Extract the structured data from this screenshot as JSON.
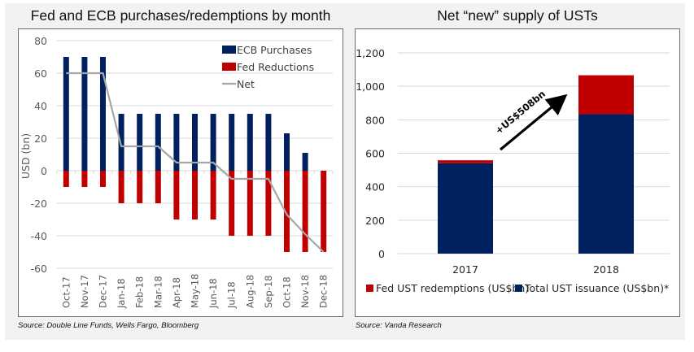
{
  "chart_data": [
    {
      "type": "bar",
      "title": "Fed and ECB purchases/redemptions by month",
      "xlabel": "",
      "ylabel": "USD (bn)",
      "ylim": [
        -60,
        80
      ],
      "yticks": [
        80,
        60,
        40,
        20,
        0,
        -20,
        -40,
        -60
      ],
      "grid": true,
      "legend_position": "top-right",
      "categories": [
        "Oct-17",
        "Nov-17",
        "Dec-17",
        "Jan-18",
        "Feb-18",
        "Mar-18",
        "Apr-18",
        "May-18",
        "Jun-18",
        "Jul-18",
        "Aug-18",
        "Sep-18",
        "Oct-18",
        "Nov-18",
        "Dec-18"
      ],
      "series": [
        {
          "name": "ECB Purchases",
          "type": "bar",
          "color": "#002060",
          "values": [
            70,
            70,
            70,
            35,
            35,
            35,
            35,
            35,
            35,
            35,
            35,
            35,
            23,
            11,
            0
          ]
        },
        {
          "name": "Fed Reductions",
          "type": "bar",
          "color": "#c00000",
          "values": [
            -10,
            -10,
            -10,
            -20,
            -20,
            -20,
            -30,
            -30,
            -30,
            -40,
            -40,
            -40,
            -50,
            -50,
            -50
          ]
        },
        {
          "name": "Net",
          "type": "line",
          "color": "#a6a6a6",
          "values": [
            60,
            60,
            60,
            15,
            15,
            15,
            5,
            5,
            5,
            -5,
            -5,
            -5,
            -27,
            -39,
            -50
          ]
        }
      ],
      "source": "Source: Double Line Funds, Wells Fargo, Bloomberg"
    },
    {
      "type": "bar",
      "stacked": true,
      "title": "Net “new” supply of USTs",
      "xlabel": "",
      "ylabel": "",
      "ylim": [
        0,
        1200
      ],
      "yticks": [
        "0",
        "200",
        "400",
        "600",
        "800",
        "1,000",
        "1,200"
      ],
      "ytick_values": [
        0,
        200,
        400,
        600,
        800,
        1000,
        1200
      ],
      "grid": true,
      "legend_position": "bottom",
      "categories": [
        "2017",
        "2018"
      ],
      "series": [
        {
          "name": "Total UST issuance (US$bn)*",
          "color": "#002060",
          "values": [
            540,
            833
          ]
        },
        {
          "name": "Fed UST redemptions (US$bn)",
          "color": "#c00000",
          "values": [
            18,
            233
          ]
        }
      ],
      "legend_order": [
        "Fed UST redemptions (US$bn)",
        "Total UST issuance (US$bn)*"
      ],
      "annotation": {
        "text": "+US$508bn",
        "type": "arrow",
        "from_category": "2017",
        "to_category": "2018"
      },
      "source": "Source: Vanda Research"
    }
  ]
}
